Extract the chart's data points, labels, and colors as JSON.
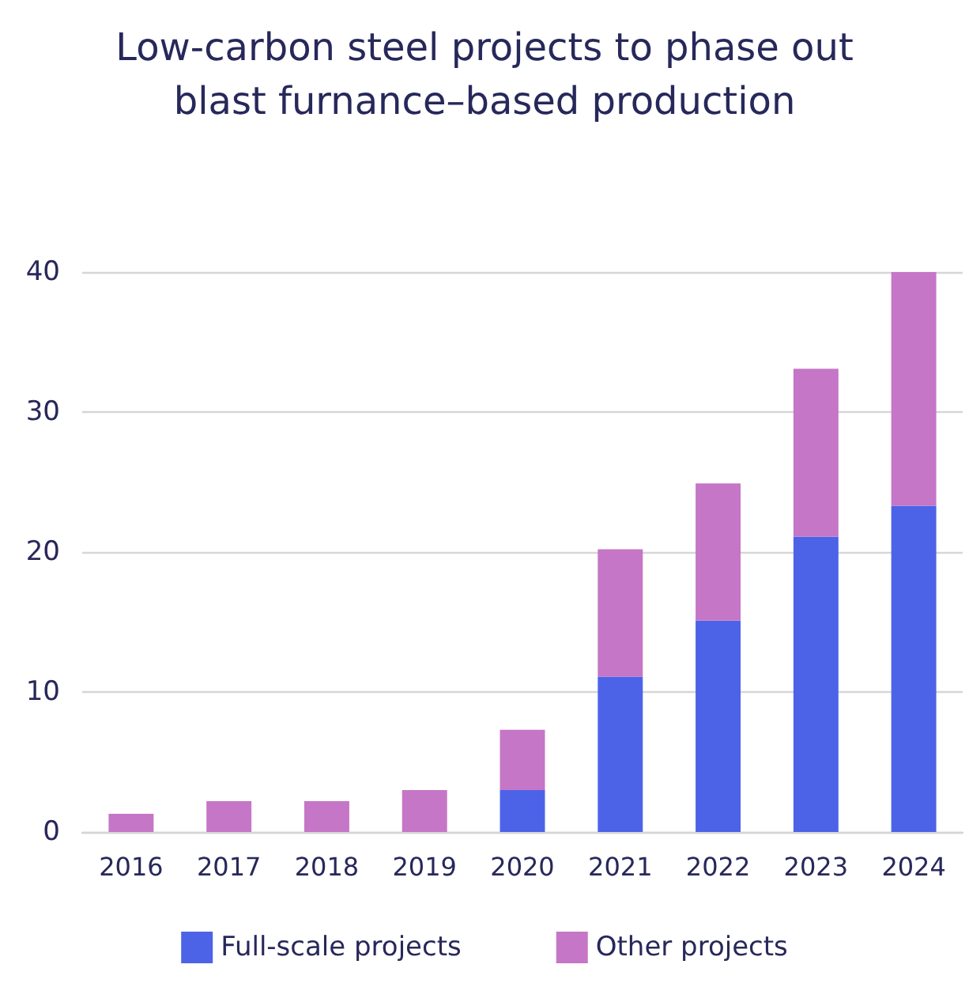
{
  "chart_data": {
    "type": "bar",
    "title": "Low-carbon steel projects to phase out\nblast furnance–based production",
    "categories": [
      "2016",
      "2017",
      "2018",
      "2019",
      "2020",
      "2021",
      "2022",
      "2023",
      "2024"
    ],
    "stacked": true,
    "series": [
      {
        "name": "Full-scale projects",
        "color": "#4c63e8",
        "values": [
          0,
          0,
          0,
          0,
          3,
          11.1,
          15.1,
          21.1,
          23.3
        ]
      },
      {
        "name": "Other projects",
        "color": "#c576c6",
        "values": [
          1.3,
          2.2,
          2.2,
          3,
          4.3,
          9.1,
          9.8,
          12,
          16.7
        ]
      }
    ],
    "ylim": [
      0,
      40
    ],
    "yticks": [
      0,
      10,
      20,
      30,
      40
    ],
    "grid": "y",
    "legend": "bottom"
  }
}
